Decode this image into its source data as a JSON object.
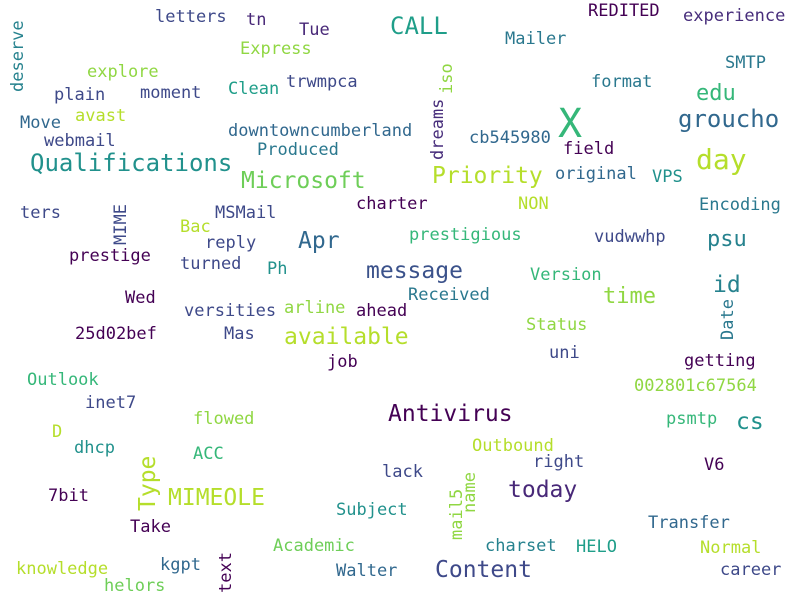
{
  "words": [
    {
      "text": "X",
      "color": "#35b779"
    },
    {
      "text": "CALL",
      "color": "#1f9e89"
    },
    {
      "text": "day",
      "color": "#b5de2b"
    },
    {
      "text": "Qualifications",
      "color": "#21918c"
    },
    {
      "text": "groucho",
      "color": "#31688e"
    },
    {
      "text": "Microsoft",
      "color": "#6ece58"
    },
    {
      "text": "Priority",
      "color": "#b5de2b"
    },
    {
      "text": "edu",
      "color": "#35b779"
    },
    {
      "text": "message",
      "color": "#3b528b"
    },
    {
      "text": "Apr",
      "color": "#31688e"
    },
    {
      "text": "psu",
      "color": "#26828e"
    },
    {
      "text": "available",
      "color": "#b5de2b"
    },
    {
      "text": "time",
      "color": "#90d743"
    },
    {
      "text": "id",
      "color": "#26828e"
    },
    {
      "text": "Antivirus",
      "color": "#440154"
    },
    {
      "text": "cs",
      "color": "#21918c"
    },
    {
      "text": "MIMEOLE",
      "color": "#b5de2b"
    },
    {
      "text": "today",
      "color": "#482878"
    },
    {
      "text": "Type",
      "color": "#b5de2b"
    },
    {
      "text": "Content",
      "color": "#3e4989"
    },
    {
      "text": "letters",
      "color": "#3e4989"
    },
    {
      "text": "tn",
      "color": "#482878"
    },
    {
      "text": "Tue",
      "color": "#482878"
    },
    {
      "text": "REDITED",
      "color": "#440154"
    },
    {
      "text": "experience",
      "color": "#472d7b"
    },
    {
      "text": "deserve",
      "color": "#26828e"
    },
    {
      "text": "Express",
      "color": "#90d743"
    },
    {
      "text": "Mailer",
      "color": "#2a788e"
    },
    {
      "text": "explore",
      "color": "#90d743"
    },
    {
      "text": "trwmpca",
      "color": "#3e4989"
    },
    {
      "text": "iso",
      "color": "#90d743"
    },
    {
      "text": "format",
      "color": "#2a788e"
    },
    {
      "text": "SMTP",
      "color": "#2a788e"
    },
    {
      "text": "plain",
      "color": "#3e4989"
    },
    {
      "text": "moment",
      "color": "#3e4989"
    },
    {
      "text": "Clean",
      "color": "#1f9e89"
    },
    {
      "text": "dreams",
      "color": "#472d7b"
    },
    {
      "text": "Move",
      "color": "#31688e"
    },
    {
      "text": "avast",
      "color": "#b5de2b"
    },
    {
      "text": "downtowncumberland",
      "color": "#31688e"
    },
    {
      "text": "webmail",
      "color": "#3e4989"
    },
    {
      "text": "cb545980",
      "color": "#31688e"
    },
    {
      "text": "field",
      "color": "#440154"
    },
    {
      "text": "Produced",
      "color": "#2a788e"
    },
    {
      "text": "original",
      "color": "#31688e"
    },
    {
      "text": "VPS",
      "color": "#21918c"
    },
    {
      "text": "ters",
      "color": "#3e4989"
    },
    {
      "text": "MIME",
      "color": "#3e4989"
    },
    {
      "text": "MSMail",
      "color": "#3e4989"
    },
    {
      "text": "charter",
      "color": "#440154"
    },
    {
      "text": "NON",
      "color": "#b5de2b"
    },
    {
      "text": "Encoding",
      "color": "#2a788e"
    },
    {
      "text": "Bac",
      "color": "#b5de2b"
    },
    {
      "text": "prestigious",
      "color": "#35b779"
    },
    {
      "text": "reply",
      "color": "#3e4989"
    },
    {
      "text": "vudwwhp",
      "color": "#3e4989"
    },
    {
      "text": "prestige",
      "color": "#440154"
    },
    {
      "text": "turned",
      "color": "#3e4989"
    },
    {
      "text": "Ph",
      "color": "#21918c"
    },
    {
      "text": "Version",
      "color": "#35b779"
    },
    {
      "text": "Received",
      "color": "#2a788e"
    },
    {
      "text": "Wed",
      "color": "#440154"
    },
    {
      "text": "versities",
      "color": "#3e4989"
    },
    {
      "text": "arline",
      "color": "#90d743"
    },
    {
      "text": "ahead",
      "color": "#440154"
    },
    {
      "text": "Date",
      "color": "#2a788e"
    },
    {
      "text": "25d02bef",
      "color": "#440154"
    },
    {
      "text": "Mas",
      "color": "#3e4989"
    },
    {
      "text": "Status",
      "color": "#90d743"
    },
    {
      "text": "uni",
      "color": "#3e4989"
    },
    {
      "text": "job",
      "color": "#440154"
    },
    {
      "text": "getting",
      "color": "#440154"
    },
    {
      "text": "Outlook",
      "color": "#35b779"
    },
    {
      "text": "002801c67564",
      "color": "#90d743"
    },
    {
      "text": "inet7",
      "color": "#3e4989"
    },
    {
      "text": "flowed",
      "color": "#90d743"
    },
    {
      "text": "psmtp",
      "color": "#35b779"
    },
    {
      "text": "D",
      "color": "#b5de2b"
    },
    {
      "text": "dhcp",
      "color": "#21918c"
    },
    {
      "text": "ACC",
      "color": "#35b779"
    },
    {
      "text": "Outbound",
      "color": "#b5de2b"
    },
    {
      "text": "right",
      "color": "#3e4989"
    },
    {
      "text": "V6",
      "color": "#440154"
    },
    {
      "text": "lack",
      "color": "#3e4989"
    },
    {
      "text": "name",
      "color": "#90d743"
    },
    {
      "text": "7bit",
      "color": "#440154"
    },
    {
      "text": "mail5",
      "color": "#90d743"
    },
    {
      "text": "Subject",
      "color": "#21918c"
    },
    {
      "text": "Take",
      "color": "#440154"
    },
    {
      "text": "Transfer",
      "color": "#31688e"
    },
    {
      "text": "charset",
      "color": "#26828e"
    },
    {
      "text": "HELO",
      "color": "#1f9e89"
    },
    {
      "text": "Academic",
      "color": "#6ece58"
    },
    {
      "text": "Normal",
      "color": "#b5de2b"
    },
    {
      "text": "text",
      "color": "#440154"
    },
    {
      "text": "kgpt",
      "color": "#31688e"
    },
    {
      "text": "knowledge",
      "color": "#b5de2b"
    },
    {
      "text": "Walter",
      "color": "#31688e"
    },
    {
      "text": "career",
      "color": "#3e4989"
    },
    {
      "text": "helors",
      "color": "#6ece58"
    }
  ]
}
